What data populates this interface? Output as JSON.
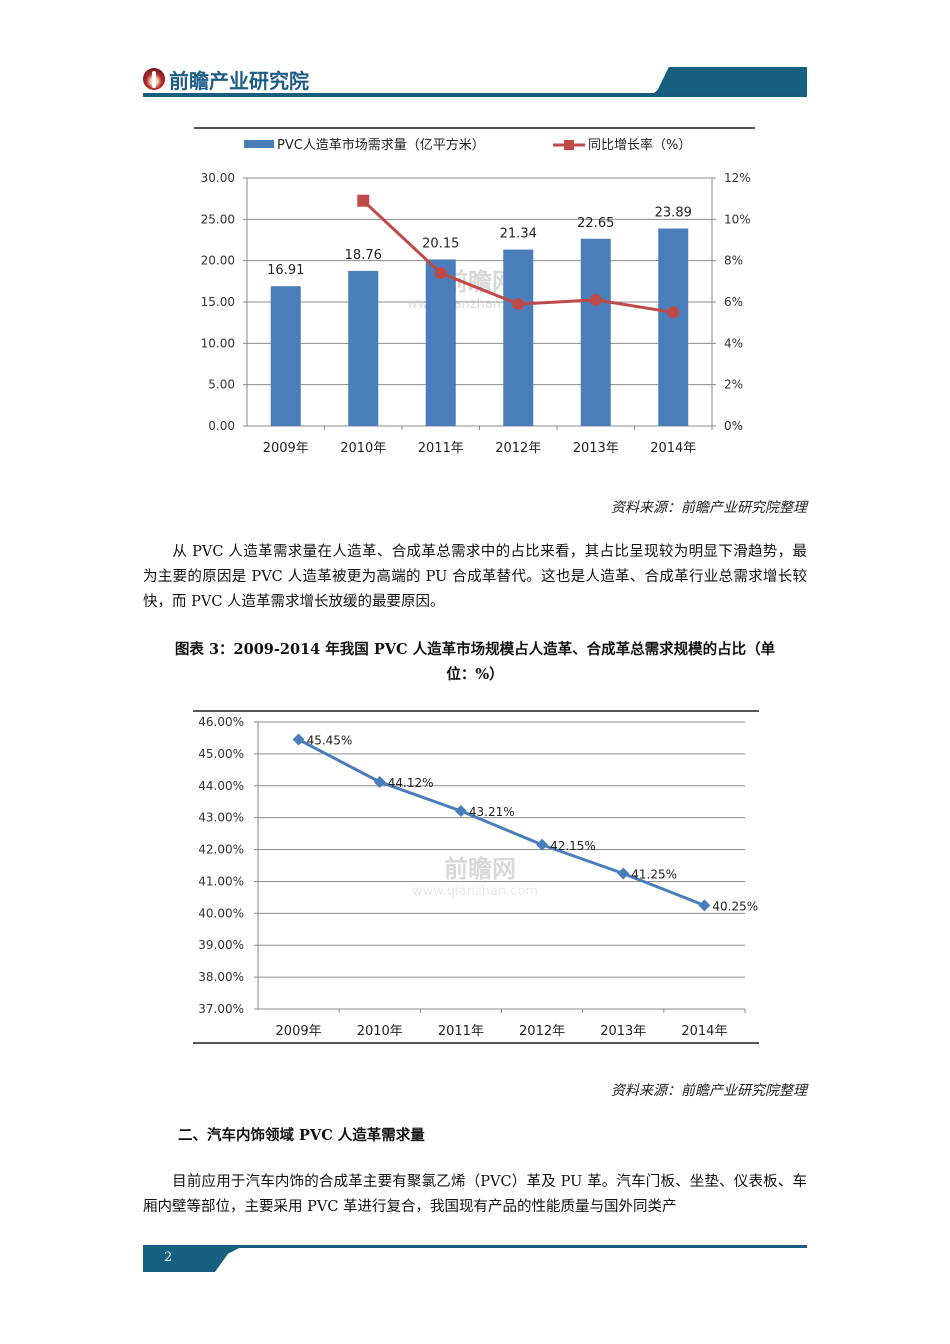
{
  "header": {
    "brand": "前瞻产业研究院",
    "logo_icon": "qianzhan-logo-icon"
  },
  "chart1": {
    "legend": {
      "bar_label": "PVC人造革市场需求量（亿平方米）",
      "line_label": "同比增长率（%）"
    },
    "watermark": {
      "text": "前瞻网",
      "url": "www.qianzhan.com"
    },
    "left_ticks": [
      "30.00",
      "25.00",
      "20.00",
      "15.00",
      "10.00",
      "5.00",
      "0.00"
    ],
    "right_ticks": [
      "12%",
      "10%",
      "8%",
      "6%",
      "4%",
      "2%",
      "0%"
    ],
    "categories": [
      "2009年",
      "2010年",
      "2011年",
      "2012年",
      "2013年",
      "2014年"
    ],
    "bar_labels": [
      "16.91",
      "18.76",
      "20.15",
      "21.34",
      "22.65",
      "23.89"
    ]
  },
  "source1": "资料来源：前瞻产业研究院整理",
  "paragraph1": "从 PVC 人造革需求量在人造革、合成革总需求中的占比来看，其占比呈现较为明显下滑趋势，最为主要的原因是 PVC 人造革被更为高端的 PU 合成革替代。这也是人造革、合成革行业总需求增长较快，而 PVC 人造革需求增长放缓的最要原因。",
  "caption2_line1": "图表 3：2009-2014 年我国 PVC 人造革市场规模占人造革、合成革总需求规模的占比（单",
  "caption2_line2": "位：%）",
  "chart2": {
    "watermark": {
      "text": "前瞻网",
      "url": "www.qianzhan.com"
    },
    "y_ticks": [
      "46.00%",
      "45.00%",
      "44.00%",
      "43.00%",
      "42.00%",
      "41.00%",
      "40.00%",
      "39.00%",
      "38.00%",
      "37.00%"
    ],
    "categories": [
      "2009年",
      "2010年",
      "2011年",
      "2012年",
      "2013年",
      "2014年"
    ],
    "point_labels": [
      "45.45%",
      "44.12%",
      "43.21%",
      "42.15%",
      "41.25%",
      "40.25%"
    ]
  },
  "source2": "资料来源：前瞻产业研究院整理",
  "section_title": "二、汽车内饰领域 PVC 人造革需求量",
  "paragraph2": "目前应用于汽车内饰的合成革主要有聚氯乙烯（PVC）革及 PU 革。汽车门板、坐垫、仪表板、车厢内壁等部位，主要采用 PVC 革进行复合，我国现有产品的性能质量与国外同类产",
  "footer": {
    "page_number": "2"
  },
  "colors": {
    "brand_blue": "#1a5c80",
    "bar_blue": "#4a7ebb",
    "line_red": "#be4b48",
    "line2_blue": "#4a7ebb"
  },
  "chart_data": [
    {
      "type": "bar+line",
      "title": "",
      "categories": [
        "2009年",
        "2010年",
        "2011年",
        "2012年",
        "2013年",
        "2014年"
      ],
      "series": [
        {
          "name": "PVC人造革市场需求量（亿平方米）",
          "type": "bar",
          "axis": "left",
          "values": [
            16.91,
            18.76,
            20.15,
            21.34,
            22.65,
            23.89
          ]
        },
        {
          "name": "同比增长率（%）",
          "type": "line",
          "axis": "right",
          "values": [
            null,
            10.9,
            7.4,
            5.9,
            6.1,
            5.5
          ]
        }
      ],
      "ylim": [
        0,
        30
      ],
      "y2lim": [
        0,
        12
      ],
      "yticks": [
        0,
        5,
        10,
        15,
        20,
        25,
        30
      ],
      "y2ticks": [
        "0%",
        "2%",
        "4%",
        "6%",
        "8%",
        "10%",
        "12%"
      ],
      "legend_position": "top",
      "grid": true
    },
    {
      "type": "line",
      "title": "2009-2014 年我国 PVC 人造革市场规模占人造革、合成革总需求规模的占比（单位：%）",
      "categories": [
        "2009年",
        "2010年",
        "2011年",
        "2012年",
        "2013年",
        "2014年"
      ],
      "series": [
        {
          "name": "占比",
          "values": [
            45.45,
            44.12,
            43.21,
            42.15,
            41.25,
            40.25
          ]
        }
      ],
      "ylim": [
        37,
        46
      ],
      "yticks": [
        "37.00%",
        "38.00%",
        "39.00%",
        "40.00%",
        "41.00%",
        "42.00%",
        "43.00%",
        "44.00%",
        "45.00%",
        "46.00%"
      ],
      "grid": true,
      "legend_position": "none"
    }
  ]
}
